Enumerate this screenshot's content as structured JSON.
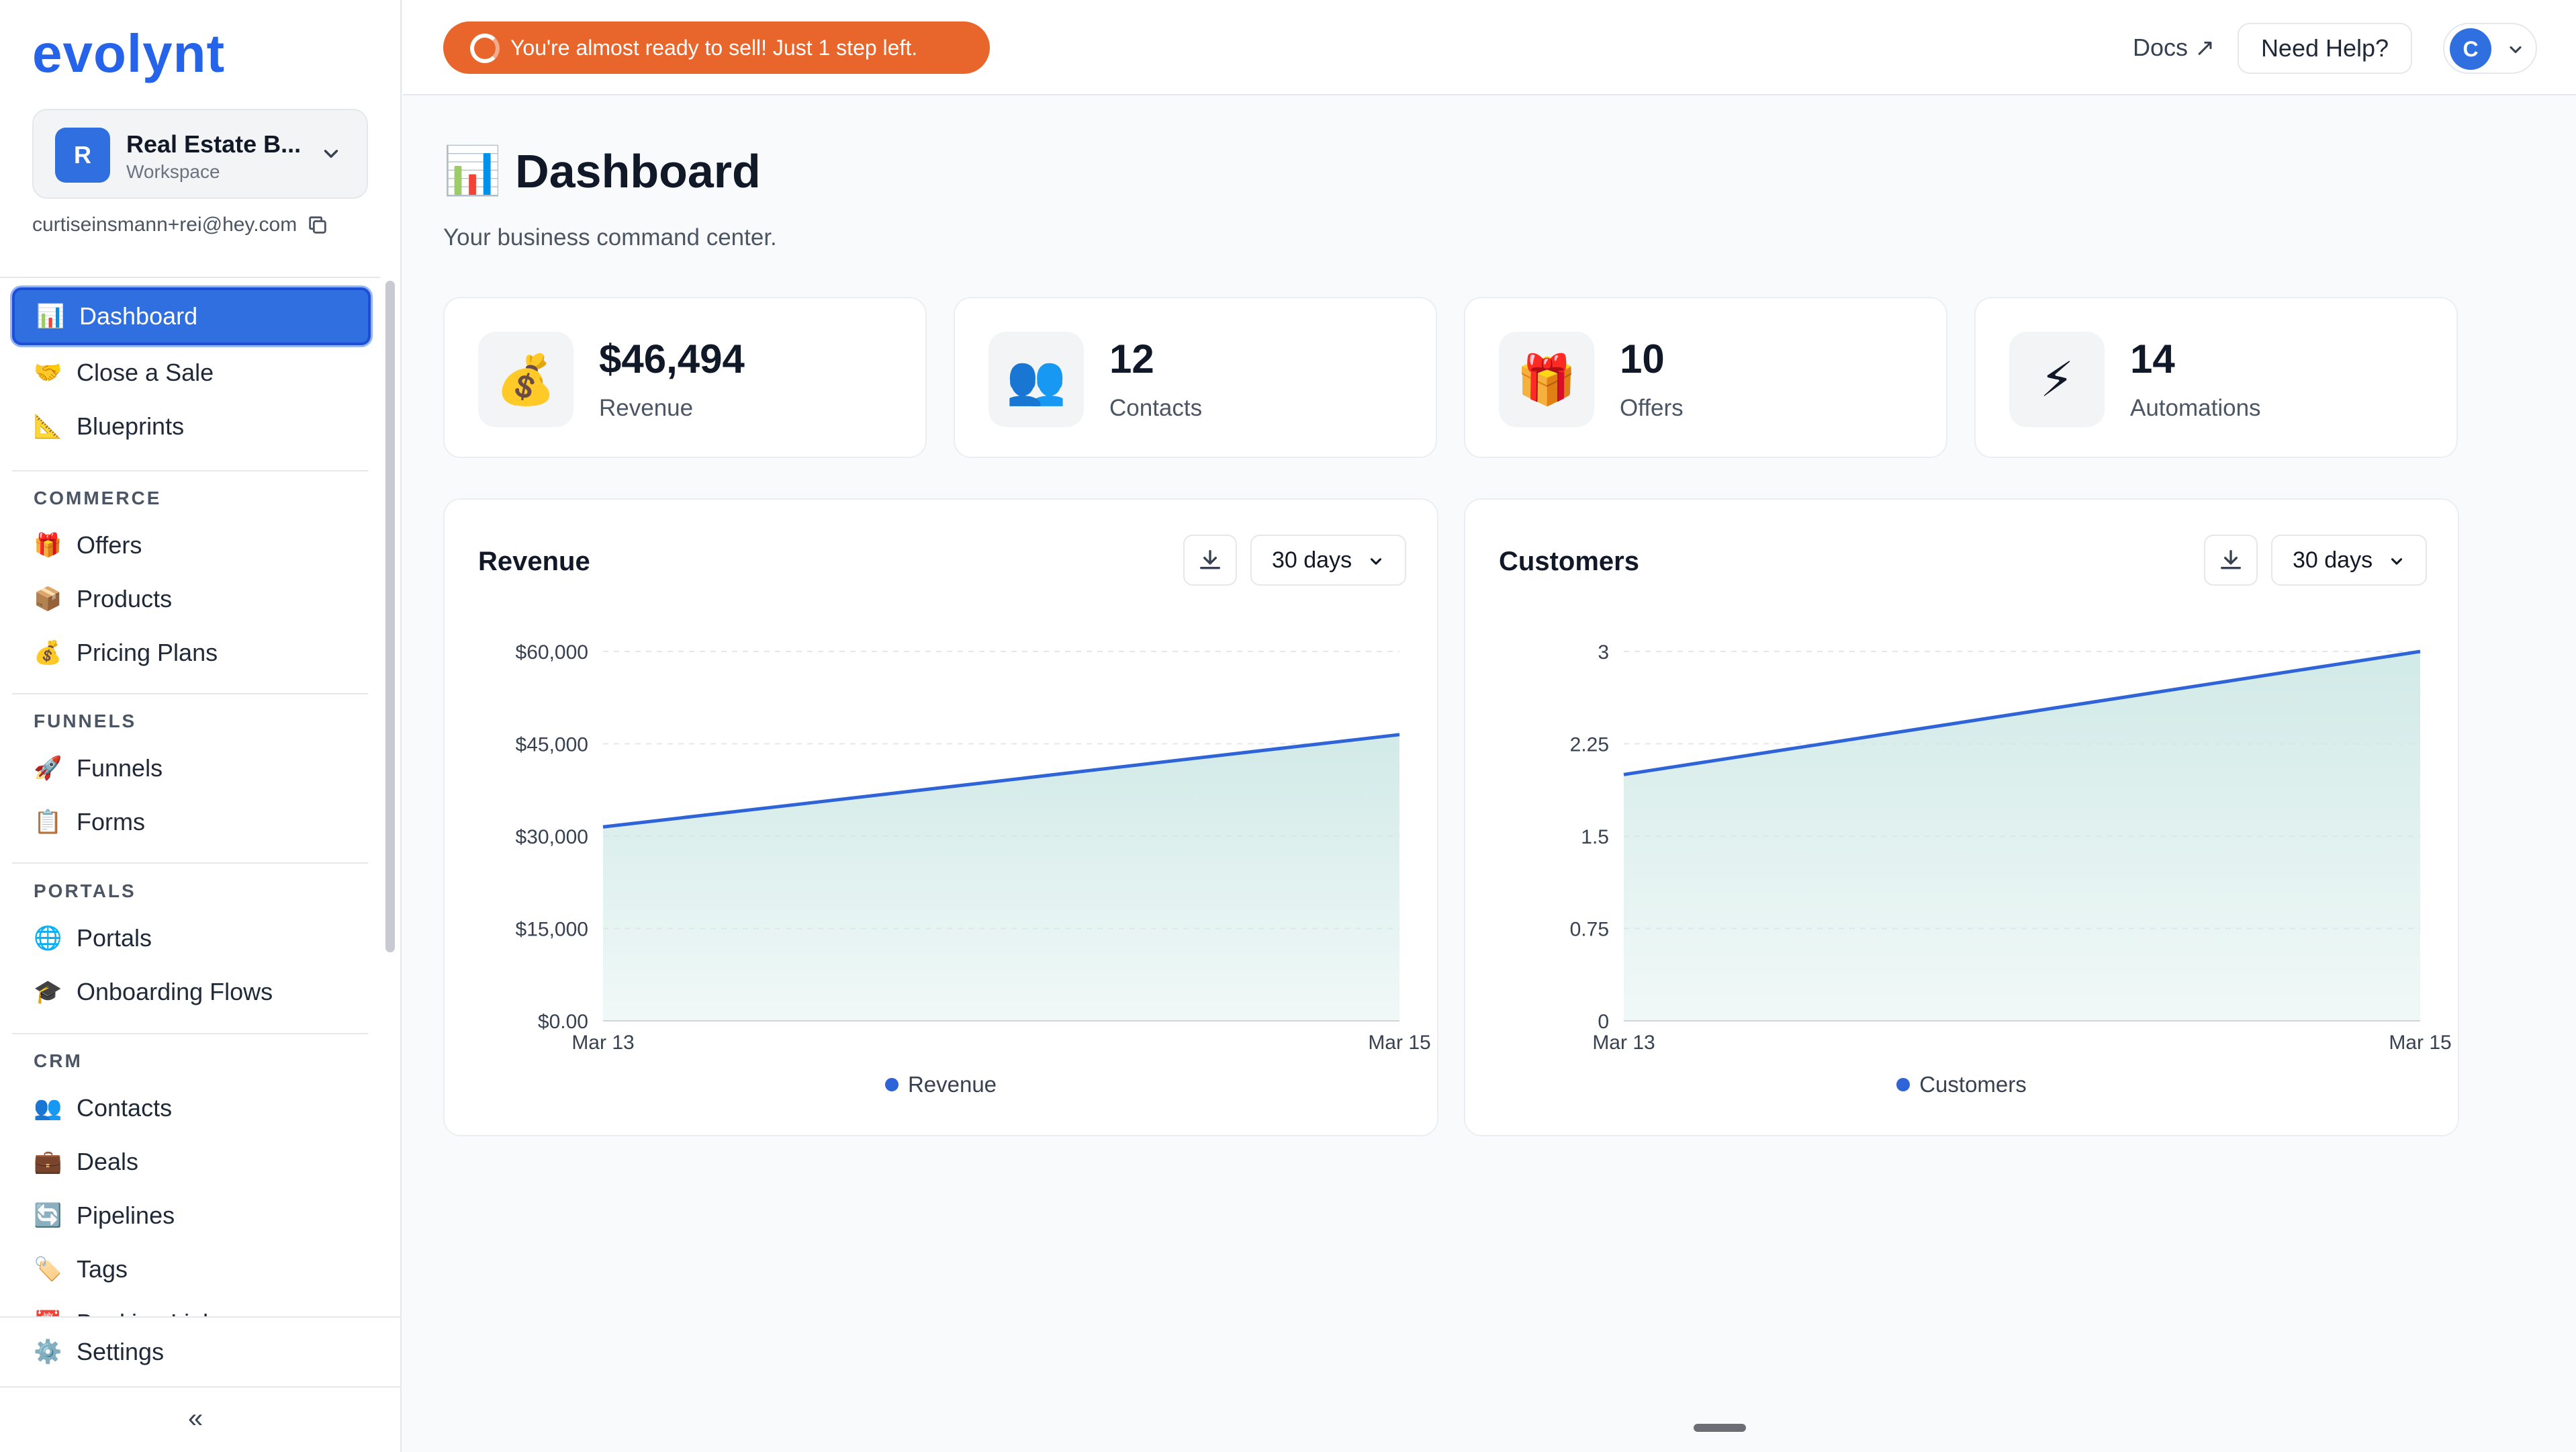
{
  "sidebar": {
    "logo": "evolynt",
    "workspace": {
      "avatar": "R",
      "name": "Real Estate B...",
      "sub": "Workspace"
    },
    "email": "curtiseinsmann+rei@hey.com",
    "items": [
      {
        "icon": "📊",
        "label": "Dashboard"
      },
      {
        "icon": "🤝",
        "label": "Close a Sale"
      },
      {
        "icon": "📐",
        "label": "Blueprints"
      },
      {
        "icon": "🎁",
        "label": "Offers"
      },
      {
        "icon": "📦",
        "label": "Products"
      },
      {
        "icon": "💰",
        "label": "Pricing Plans"
      },
      {
        "icon": "🚀",
        "label": "Funnels"
      },
      {
        "icon": "📋",
        "label": "Forms"
      },
      {
        "icon": "🌐",
        "label": "Portals"
      },
      {
        "icon": "🎓",
        "label": "Onboarding Flows"
      },
      {
        "icon": "👥",
        "label": "Contacts"
      },
      {
        "icon": "💼",
        "label": "Deals"
      },
      {
        "icon": "🔄",
        "label": "Pipelines"
      },
      {
        "icon": "🏷️",
        "label": "Tags"
      },
      {
        "icon": "📅",
        "label": "Booking Links"
      }
    ],
    "sections": [
      "COMMERCE",
      "FUNNELS",
      "PORTALS",
      "CRM"
    ],
    "settings": {
      "icon": "⚙️",
      "label": "Settings"
    },
    "collapse": "«"
  },
  "topbar": {
    "banner": "You're almost ready to sell! Just 1 step left.",
    "docs": "Docs ↗",
    "help": "Need Help?",
    "user_avatar": "C"
  },
  "page": {
    "icon": "📊",
    "title": "Dashboard",
    "subtitle": "Your business command center."
  },
  "stats": [
    {
      "icon": "💰",
      "value": "$46,494",
      "label": "Revenue"
    },
    {
      "icon": "👥",
      "value": "12",
      "label": "Contacts"
    },
    {
      "icon": "🎁",
      "value": "10",
      "label": "Offers"
    },
    {
      "icon": "⚡",
      "value": "14",
      "label": "Automations"
    }
  ],
  "colors": {
    "accent": "#2f6fe0",
    "banner": "#e8662c",
    "line": "#2f63d8",
    "area": "#cfe9e6"
  },
  "chart_data": [
    {
      "type": "area",
      "title": "Revenue",
      "range": "30 days",
      "x": [
        "Mar 13",
        "Mar 15"
      ],
      "series": [
        {
          "name": "Revenue",
          "values": [
            31500,
            46494
          ]
        }
      ],
      "ylim": [
        0,
        60000
      ],
      "yticks": [
        0,
        15000,
        30000,
        45000,
        60000
      ],
      "ytick_labels": [
        "$0.00",
        "$15,000",
        "$30,000",
        "$45,000",
        "$60,000"
      ],
      "grid": true,
      "legend": "bottom"
    },
    {
      "type": "area",
      "title": "Customers",
      "range": "30 days",
      "x": [
        "Mar 13",
        "Mar 15"
      ],
      "series": [
        {
          "name": "Customers",
          "values": [
            2,
            3
          ]
        }
      ],
      "ylim": [
        0,
        3
      ],
      "yticks": [
        0,
        0.75,
        1.5,
        2.25,
        3
      ],
      "ytick_labels": [
        "0",
        "0.75",
        "1.5",
        "2.25",
        "3"
      ],
      "grid": true,
      "legend": "bottom"
    }
  ]
}
